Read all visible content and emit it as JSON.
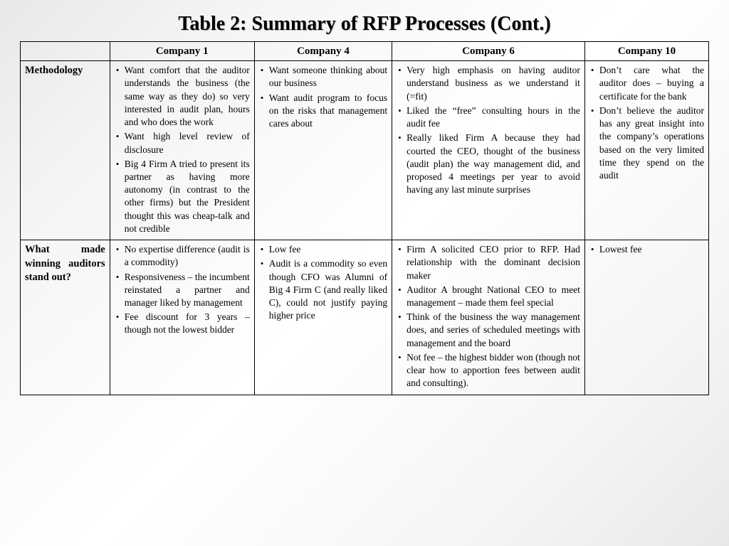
{
  "title": "Table 2: Summary of RFP Processes (Cont.)",
  "table": {
    "columns": [
      "",
      "Company 1",
      "Company 4",
      "Company 6",
      "Company 10"
    ],
    "col_widths_pct": [
      13,
      21,
      20,
      28,
      18
    ],
    "border_color": "#000000",
    "background_gradient": [
      "#e8e8e8",
      "#ffffff",
      "#e8e8e8"
    ],
    "title_fontsize": 28,
    "header_fontsize": 15,
    "body_fontsize": 13.5,
    "rows": [
      {
        "label": "Methodology",
        "cells": [
          [
            "Want comfort that the auditor understands the business (the same way as they do) so very interested in audit plan, hours and who does the work",
            "Want high level review of disclosure",
            "Big 4 Firm A tried to present its partner as having more autonomy (in contrast to the other firms) but the President thought this was cheap-talk and not credible"
          ],
          [
            "Want someone thinking about our business",
            "Want audit program to focus on the risks that management cares about"
          ],
          [
            "Very high emphasis on having auditor understand business as we understand it (=fit)",
            "Liked the “free” consulting hours in the audit fee",
            "Really liked Firm A because they had courted the CEO, thought of the business (audit plan) the way management did, and proposed 4 meetings per year to avoid having any last minute surprises"
          ],
          [
            "Don’t care what the auditor does – buying a certificate for the bank",
            "Don’t believe the auditor has any great insight into the company’s operations based on the very limited time they spend on the audit"
          ]
        ]
      },
      {
        "label": "What made winning auditors stand out?",
        "cells": [
          [
            "No expertise difference (audit is a commodity)",
            "Responsiveness – the incumbent reinstated a partner and manager liked by management",
            "Fee discount for 3 years – though not the lowest bidder"
          ],
          [
            "Low fee",
            "Audit is a commodity so even though CFO was Alumni of Big 4 Firm C (and really liked C), could not justify paying higher price"
          ],
          [
            "Firm A solicited CEO prior to RFP. Had relationship with the dominant decision maker",
            "Auditor A brought National CEO to meet management – made them feel special",
            "Think of the business the way management does, and series of scheduled meetings with management and the board",
            "Not fee – the highest bidder won (though not clear how to apportion fees between audit and consulting)."
          ],
          [
            "Lowest fee"
          ]
        ]
      }
    ]
  }
}
